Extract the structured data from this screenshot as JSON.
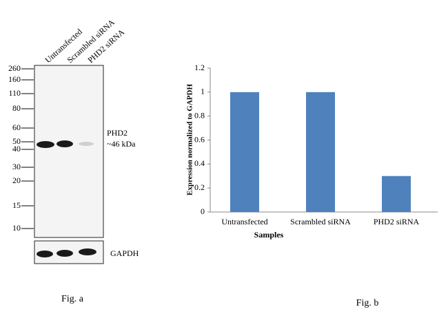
{
  "western_blot": {
    "lanes": [
      "Untransfected",
      "Scrambled siRNA",
      "PHD2 siRNA"
    ],
    "markers": [
      260,
      160,
      110,
      80,
      60,
      50,
      40,
      30,
      20,
      15,
      10
    ],
    "band_label": "PHD2",
    "band_size": "~46 kDa",
    "loading_control": "GAPDH",
    "caption": "Fig. a"
  },
  "chart_data": {
    "type": "bar",
    "categories": [
      "Untransfected",
      "Scrambled siRNA",
      "PHD2 siRNA"
    ],
    "values": [
      1,
      1,
      0.3
    ],
    "color": "#4f81bd",
    "x_label": "Samples",
    "y_label": "Expression normalized to GAPDH",
    "ylim": [
      0,
      1.2
    ],
    "yticks": [
      0,
      0.2,
      0.4,
      0.6,
      0.8,
      1,
      1.2
    ],
    "grid": false,
    "caption": "Fig. b"
  }
}
